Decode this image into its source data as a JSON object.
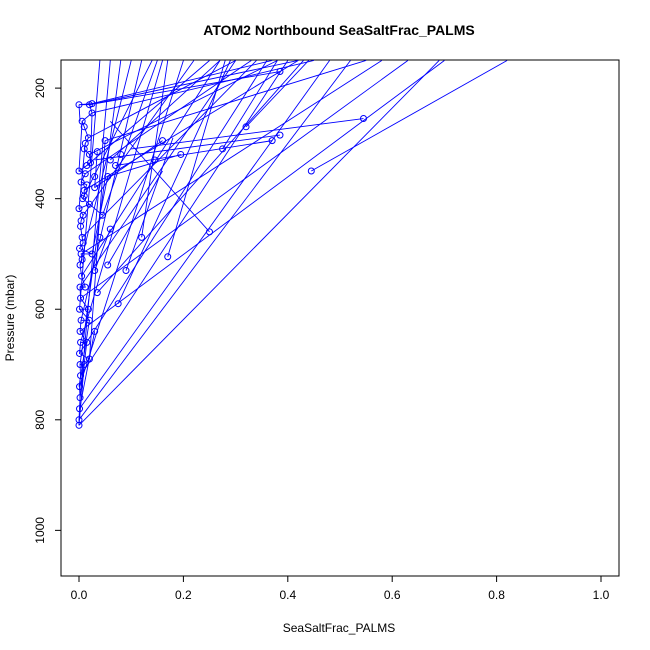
{
  "chart_data": {
    "type": "scatter",
    "title": "ATOM2 Northbound SeaSaltFrac_PALMS",
    "xlabel": "SeaSaltFrac_PALMS",
    "ylabel": "Pressure (mbar)",
    "xlim": [
      0.0,
      1.0
    ],
    "ylim": [
      1050,
      160
    ],
    "y_reversed": true,
    "grid": false,
    "connect_points": true,
    "series_color": "#0000ff",
    "x_ticks": [
      "0.0",
      "0.2",
      "0.4",
      "0.6",
      "0.8",
      "1.0"
    ],
    "x_tick_values": [
      0.0,
      0.2,
      0.4,
      0.6,
      0.8,
      1.0
    ],
    "y_ticks": [
      "200",
      "400",
      "600",
      "800",
      "1000"
    ],
    "y_tick_values": [
      200,
      400,
      600,
      800,
      1000
    ],
    "points": [
      [
        0.0,
        810
      ],
      [
        0.0,
        800
      ],
      [
        0.001,
        780
      ],
      [
        0.002,
        760
      ],
      [
        0.001,
        740
      ],
      [
        0.003,
        720
      ],
      [
        0.002,
        700
      ],
      [
        0.001,
        680
      ],
      [
        0.003,
        660
      ],
      [
        0.002,
        640
      ],
      [
        0.004,
        620
      ],
      [
        0.001,
        600
      ],
      [
        0.003,
        580
      ],
      [
        0.002,
        560
      ],
      [
        0.005,
        540
      ],
      [
        0.002,
        520
      ],
      [
        0.004,
        500
      ],
      [
        0.001,
        490
      ],
      [
        0.006,
        470
      ],
      [
        0.003,
        450
      ],
      [
        0.008,
        430
      ],
      [
        0.0,
        418
      ],
      [
        0.007,
        400
      ],
      [
        0.01,
        385
      ],
      [
        0.004,
        370
      ],
      [
        0.012,
        355
      ],
      [
        0.0,
        350
      ],
      [
        0.015,
        340
      ],
      [
        0.02,
        320
      ],
      [
        0.01,
        310
      ],
      [
        0.018,
        290
      ],
      [
        0.01,
        270
      ],
      [
        0.025,
        245
      ],
      [
        0.02,
        230
      ],
      [
        0.0,
        230
      ],
      [
        0.025,
        228
      ],
      [
        0.05,
        295
      ],
      [
        0.06,
        330
      ],
      [
        0.08,
        320
      ],
      [
        0.055,
        360
      ],
      [
        0.07,
        340
      ],
      [
        0.03,
        380
      ],
      [
        0.045,
        430
      ],
      [
        0.06,
        455
      ],
      [
        0.04,
        470
      ],
      [
        0.025,
        500
      ],
      [
        0.03,
        530
      ],
      [
        0.09,
        530
      ],
      [
        0.055,
        520
      ],
      [
        0.035,
        570
      ],
      [
        0.075,
        590
      ],
      [
        0.02,
        620
      ],
      [
        0.03,
        640
      ],
      [
        0.015,
        660
      ],
      [
        0.01,
        700
      ],
      [
        0.02,
        690
      ],
      [
        0.12,
        470
      ],
      [
        0.145,
        330
      ],
      [
        0.17,
        505
      ],
      [
        0.195,
        320
      ],
      [
        0.16,
        295
      ],
      [
        0.25,
        460
      ],
      [
        0.275,
        310
      ],
      [
        0.32,
        270
      ],
      [
        0.37,
        295
      ],
      [
        0.385,
        285
      ],
      [
        0.385,
        170
      ],
      [
        0.445,
        350
      ],
      [
        0.545,
        255
      ],
      [
        0.018,
        600
      ],
      [
        0.012,
        560
      ],
      [
        0.006,
        510
      ],
      [
        0.008,
        480
      ],
      [
        0.004,
        440
      ],
      [
        0.02,
        410
      ],
      [
        0.01,
        395
      ],
      [
        0.015,
        375
      ],
      [
        0.03,
        360
      ],
      [
        0.022,
        335
      ],
      [
        0.035,
        315
      ],
      [
        0.012,
        300
      ],
      [
        0.006,
        260
      ]
    ],
    "segments": [
      [
        [
          0.0,
          810
        ],
        [
          0.69,
          150
        ]
      ],
      [
        [
          0.0,
          800
        ],
        [
          0.52,
          150
        ]
      ],
      [
        [
          0.001,
          780
        ],
        [
          0.48,
          150
        ]
      ],
      [
        [
          0.002,
          760
        ],
        [
          0.06,
          150
        ]
      ],
      [
        [
          0.001,
          740
        ],
        [
          0.2,
          150
        ]
      ],
      [
        [
          0.003,
          720
        ],
        [
          0.4,
          150
        ]
      ],
      [
        [
          0.002,
          700
        ],
        [
          0.08,
          150
        ]
      ],
      [
        [
          0.001,
          680
        ],
        [
          0.36,
          150
        ]
      ],
      [
        [
          0.003,
          660
        ],
        [
          0.16,
          150
        ]
      ],
      [
        [
          0.002,
          640
        ],
        [
          0.7,
          150
        ]
      ],
      [
        [
          0.004,
          620
        ],
        [
          0.12,
          150
        ]
      ],
      [
        [
          0.001,
          600
        ],
        [
          0.04,
          150
        ]
      ],
      [
        [
          0.003,
          580
        ],
        [
          0.63,
          150
        ]
      ],
      [
        [
          0.002,
          560
        ],
        [
          0.3,
          150
        ]
      ],
      [
        [
          0.005,
          540
        ],
        [
          0.27,
          150
        ]
      ],
      [
        [
          0.002,
          520
        ],
        [
          0.1,
          150
        ]
      ],
      [
        [
          0.004,
          500
        ],
        [
          0.58,
          150
        ]
      ],
      [
        [
          0.006,
          470
        ],
        [
          0.34,
          150
        ]
      ],
      [
        [
          0.008,
          430
        ],
        [
          0.22,
          150
        ]
      ],
      [
        [
          0.007,
          400
        ],
        [
          0.14,
          150
        ]
      ],
      [
        [
          0.01,
          385
        ],
        [
          0.42,
          150
        ]
      ],
      [
        [
          0.012,
          355
        ],
        [
          0.33,
          150
        ]
      ],
      [
        [
          0.015,
          340
        ],
        [
          0.25,
          150
        ]
      ],
      [
        [
          0.02,
          320
        ],
        [
          0.38,
          150
        ]
      ],
      [
        [
          0.018,
          290
        ],
        [
          0.3,
          150
        ]
      ],
      [
        [
          0.025,
          245
        ],
        [
          0.45,
          150
        ]
      ],
      [
        [
          0.02,
          230
        ],
        [
          0.42,
          150
        ]
      ],
      [
        [
          0.025,
          228
        ],
        [
          0.37,
          150
        ]
      ],
      [
        [
          0.05,
          295
        ],
        [
          0.55,
          150
        ]
      ],
      [
        [
          0.06,
          330
        ],
        [
          0.27,
          150
        ]
      ],
      [
        [
          0.045,
          430
        ],
        [
          0.15,
          150
        ]
      ],
      [
        [
          0.035,
          570
        ],
        [
          0.43,
          150
        ]
      ],
      [
        [
          0.075,
          590
        ],
        [
          0.29,
          150
        ]
      ],
      [
        [
          0.12,
          470
        ],
        [
          0.17,
          150
        ]
      ],
      [
        [
          0.17,
          505
        ],
        [
          0.28,
          150
        ]
      ],
      [
        [
          0.25,
          460
        ],
        [
          0.06,
          260
        ]
      ],
      [
        [
          0.275,
          310
        ],
        [
          0.38,
          150
        ]
      ],
      [
        [
          0.32,
          270
        ],
        [
          0.44,
          150
        ]
      ],
      [
        [
          0.385,
          285
        ],
        [
          0.03,
          330
        ]
      ],
      [
        [
          0.445,
          350
        ],
        [
          0.82,
          150
        ]
      ],
      [
        [
          0.545,
          255
        ],
        [
          0.1,
          310
        ]
      ],
      [
        [
          0.385,
          170
        ],
        [
          0.02,
          230
        ]
      ],
      [
        [
          0.195,
          320
        ],
        [
          0.055,
          360
        ]
      ],
      [
        [
          0.16,
          295
        ],
        [
          0.03,
          380
        ]
      ],
      [
        [
          0.37,
          295
        ],
        [
          0.07,
          340
        ]
      ],
      [
        [
          0.09,
          530
        ],
        [
          0.18,
          290
        ]
      ],
      [
        [
          0.055,
          520
        ],
        [
          0.16,
          350
        ]
      ],
      [
        [
          0.02,
          690
        ],
        [
          0.05,
          295
        ]
      ],
      [
        [
          0.0,
          810
        ],
        [
          0.01,
          700
        ]
      ],
      [
        [
          0.001,
          780
        ],
        [
          0.03,
          640
        ]
      ],
      [
        [
          0.0,
          740
        ],
        [
          0.02,
          620
        ]
      ],
      [
        [
          0.002,
          760
        ],
        [
          0.015,
          660
        ]
      ],
      [
        [
          0.0,
          230
        ],
        [
          0.002,
          260
        ]
      ],
      [
        [
          0.0,
          350
        ],
        [
          0.006,
          260
        ]
      ],
      [
        [
          0.0,
          418
        ],
        [
          0.012,
          300
        ]
      ],
      [
        [
          0.03,
          380
        ],
        [
          0.035,
          315
        ]
      ],
      [
        [
          0.022,
          335
        ],
        [
          0.025,
          245
        ]
      ],
      [
        [
          0.02,
          410
        ],
        [
          0.045,
          430
        ]
      ],
      [
        [
          0.025,
          500
        ],
        [
          0.055,
          360
        ]
      ],
      [
        [
          0.03,
          530
        ],
        [
          0.06,
          455
        ]
      ]
    ]
  }
}
